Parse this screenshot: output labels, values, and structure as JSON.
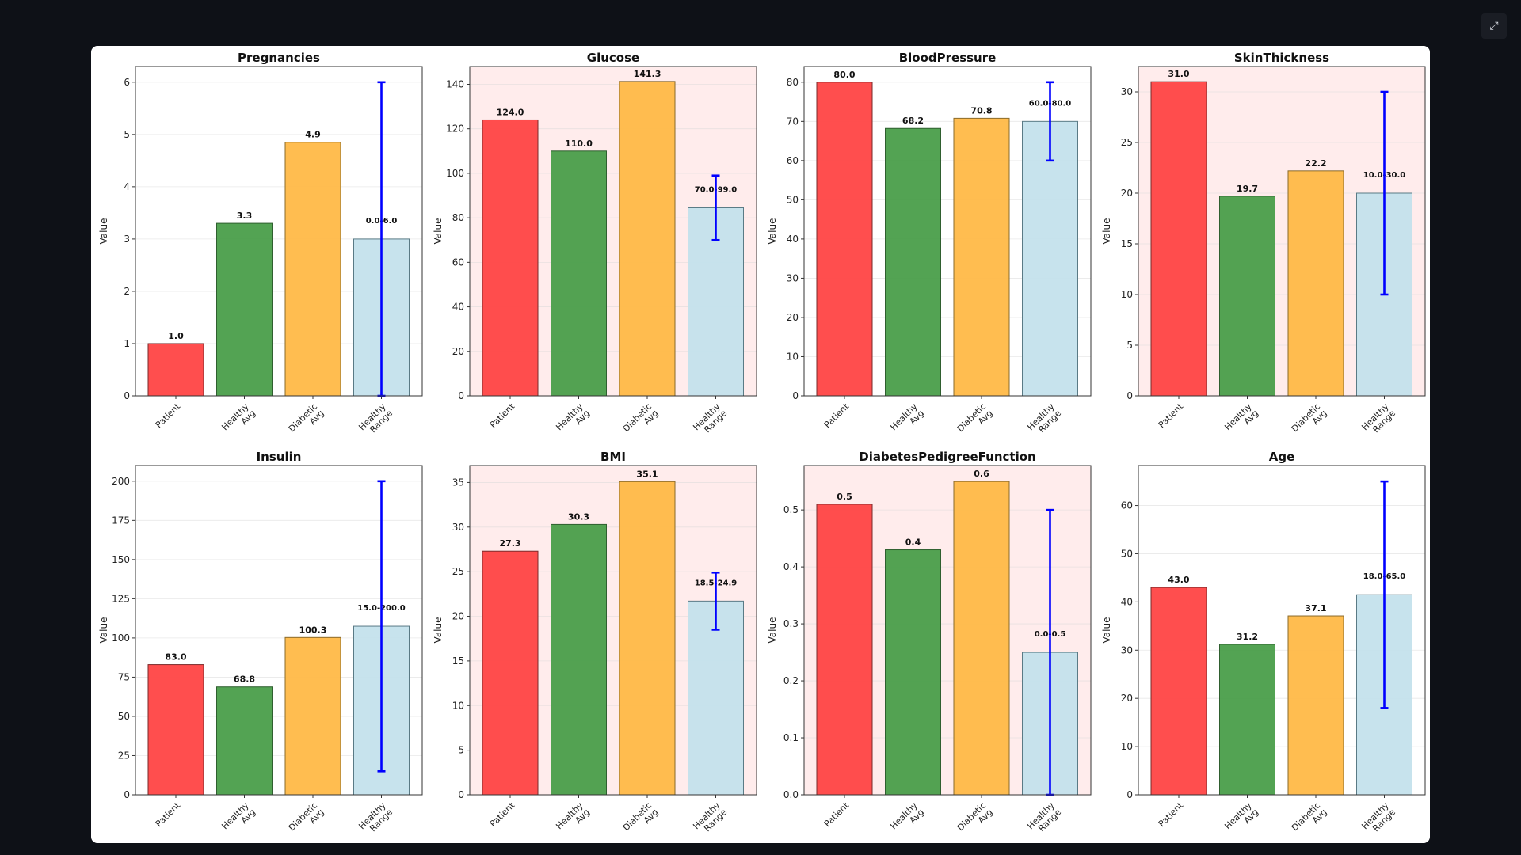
{
  "toolbar": {
    "exit_fullscreen_icon": "exit-fullscreen-icon"
  },
  "colors": {
    "patient": "#ff4444",
    "healthy_avg": "#4a9e4a",
    "diabetic_avg": "#ffb947",
    "healthy_range": "#c4e2ec",
    "error_bar": "#0000ff",
    "abnormal_background": "#ffecec"
  },
  "chart_data": [
    {
      "type": "bar",
      "title": "Pregnancies",
      "ylabel": "Value",
      "categories": [
        [
          "Patient"
        ],
        [
          "Healthy",
          "Avg"
        ],
        [
          "Diabetic",
          "Avg"
        ],
        [
          "Healthy",
          "Range"
        ]
      ],
      "values": [
        1.0,
        3.3,
        4.85,
        3.0
      ],
      "value_labels": [
        "1.0",
        "3.3",
        "4.9",
        "0.0-6.0"
      ],
      "range": [
        0,
        6
      ],
      "ylim": [
        0,
        6.3
      ],
      "yticks": [
        0,
        1,
        2,
        3,
        4,
        5,
        6
      ],
      "abnormal": false
    },
    {
      "type": "bar",
      "title": "Glucose",
      "ylabel": "Value",
      "categories": [
        [
          "Patient"
        ],
        [
          "Healthy",
          "Avg"
        ],
        [
          "Diabetic",
          "Avg"
        ],
        [
          "Healthy",
          "Range"
        ]
      ],
      "values": [
        124.0,
        110.0,
        141.3,
        84.5
      ],
      "value_labels": [
        "124.0",
        "110.0",
        "141.3",
        "70.0-99.0"
      ],
      "range": [
        70,
        99
      ],
      "ylim": [
        0,
        148
      ],
      "yticks": [
        0,
        20,
        40,
        60,
        80,
        100,
        120,
        140
      ],
      "abnormal": true
    },
    {
      "type": "bar",
      "title": "BloodPressure",
      "ylabel": "Value",
      "categories": [
        [
          "Patient"
        ],
        [
          "Healthy",
          "Avg"
        ],
        [
          "Diabetic",
          "Avg"
        ],
        [
          "Healthy",
          "Range"
        ]
      ],
      "values": [
        80.0,
        68.2,
        70.8,
        70.0
      ],
      "value_labels": [
        "80.0",
        "68.2",
        "70.8",
        "60.0-80.0"
      ],
      "range": [
        60,
        80
      ],
      "ylim": [
        0,
        84
      ],
      "yticks": [
        0,
        10,
        20,
        30,
        40,
        50,
        60,
        70,
        80
      ],
      "abnormal": false
    },
    {
      "type": "bar",
      "title": "SkinThickness",
      "ylabel": "Value",
      "categories": [
        [
          "Patient"
        ],
        [
          "Healthy",
          "Avg"
        ],
        [
          "Diabetic",
          "Avg"
        ],
        [
          "Healthy",
          "Range"
        ]
      ],
      "values": [
        31.0,
        19.7,
        22.2,
        20.0
      ],
      "value_labels": [
        "31.0",
        "19.7",
        "22.2",
        "10.0-30.0"
      ],
      "range": [
        10,
        30
      ],
      "ylim": [
        0,
        32.5
      ],
      "yticks": [
        0,
        5,
        10,
        15,
        20,
        25,
        30
      ],
      "abnormal": true
    },
    {
      "type": "bar",
      "title": "Insulin",
      "ylabel": "Value",
      "categories": [
        [
          "Patient"
        ],
        [
          "Healthy",
          "Avg"
        ],
        [
          "Diabetic",
          "Avg"
        ],
        [
          "Healthy",
          "Range"
        ]
      ],
      "values": [
        83.0,
        68.8,
        100.3,
        107.5
      ],
      "value_labels": [
        "83.0",
        "68.8",
        "100.3",
        "15.0-200.0"
      ],
      "range": [
        15,
        200
      ],
      "ylim": [
        0,
        210
      ],
      "yticks": [
        0,
        25,
        50,
        75,
        100,
        125,
        150,
        175,
        200
      ],
      "abnormal": false
    },
    {
      "type": "bar",
      "title": "BMI",
      "ylabel": "Value",
      "categories": [
        [
          "Patient"
        ],
        [
          "Healthy",
          "Avg"
        ],
        [
          "Diabetic",
          "Avg"
        ],
        [
          "Healthy",
          "Range"
        ]
      ],
      "values": [
        27.3,
        30.3,
        35.1,
        21.7
      ],
      "value_labels": [
        "27.3",
        "30.3",
        "35.1",
        "18.5-24.9"
      ],
      "range": [
        18.5,
        24.9
      ],
      "ylim": [
        0,
        36.9
      ],
      "yticks": [
        0,
        5,
        10,
        15,
        20,
        25,
        30,
        35
      ],
      "abnormal": true
    },
    {
      "type": "bar",
      "title": "DiabetesPedigreeFunction",
      "ylabel": "Value",
      "categories": [
        [
          "Patient"
        ],
        [
          "Healthy",
          "Avg"
        ],
        [
          "Diabetic",
          "Avg"
        ],
        [
          "Healthy",
          "Range"
        ]
      ],
      "values": [
        0.51,
        0.43,
        0.55,
        0.25
      ],
      "value_labels": [
        "0.5",
        "0.4",
        "0.6",
        "0.0-0.5"
      ],
      "range": [
        0,
        0.5
      ],
      "ylim": [
        0,
        0.578
      ],
      "yticks": [
        0.0,
        0.1,
        0.2,
        0.3,
        0.4,
        0.5
      ],
      "abnormal": true
    },
    {
      "type": "bar",
      "title": "Age",
      "ylabel": "Value",
      "categories": [
        [
          "Patient"
        ],
        [
          "Healthy",
          "Avg"
        ],
        [
          "Diabetic",
          "Avg"
        ],
        [
          "Healthy",
          "Range"
        ]
      ],
      "values": [
        43.0,
        31.2,
        37.1,
        41.5
      ],
      "value_labels": [
        "43.0",
        "31.2",
        "37.1",
        "18.0-65.0"
      ],
      "range": [
        18,
        65
      ],
      "ylim": [
        0,
        68.3
      ],
      "yticks": [
        0,
        10,
        20,
        30,
        40,
        50,
        60
      ],
      "abnormal": false
    }
  ]
}
